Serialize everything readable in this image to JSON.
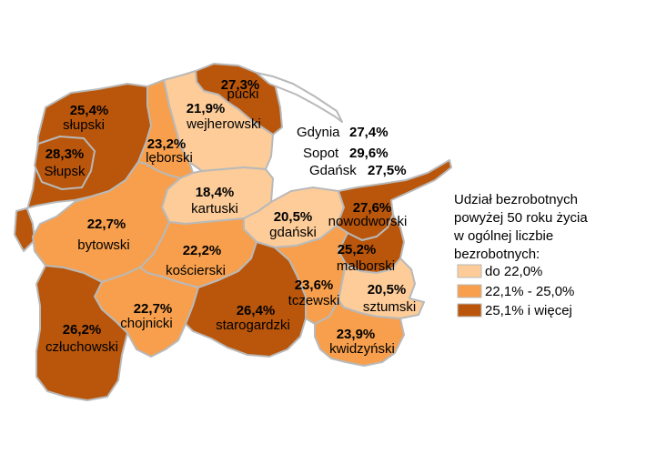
{
  "colors": {
    "low": "#fdcc99",
    "mid": "#f79f4c",
    "high": "#b9560b",
    "border": "#b9b9b9"
  },
  "regions": [
    {
      "name": "pucki",
      "value": "27,3%",
      "class": "high"
    },
    {
      "name": "wejherowski",
      "value": "21,9%",
      "class": "low"
    },
    {
      "name": "słupski",
      "value": "25,4%",
      "class": "high"
    },
    {
      "name": "Słupsk",
      "value": "28,3%",
      "class": "high"
    },
    {
      "name": "lęborski",
      "value": "23,2%",
      "class": "mid"
    },
    {
      "name": "kartuski",
      "value": "18,4%",
      "class": "low"
    },
    {
      "name": "gdański",
      "value": "20,5%",
      "class": "low"
    },
    {
      "name": "nowodworski",
      "value": "27,6%",
      "class": "high"
    },
    {
      "name": "bytowski",
      "value": "22,7%",
      "class": "mid"
    },
    {
      "name": "kościerski",
      "value": "22,2%",
      "class": "mid"
    },
    {
      "name": "malborski",
      "value": "25,2%",
      "class": "high"
    },
    {
      "name": "chojnicki",
      "value": "22,7%",
      "class": "mid"
    },
    {
      "name": "starogardzki",
      "value": "26,4%",
      "class": "high"
    },
    {
      "name": "tczewski",
      "value": "23,6%",
      "class": "mid"
    },
    {
      "name": "sztumski",
      "value": "20,5%",
      "class": "low"
    },
    {
      "name": "człuchowski",
      "value": "26,2%",
      "class": "high"
    },
    {
      "name": "kwidzyński",
      "value": "23,9%",
      "class": "mid"
    }
  ],
  "cities": [
    {
      "name": "Gdynia",
      "value": "27,4%"
    },
    {
      "name": "Sopot",
      "value": "29,6%"
    },
    {
      "name": "Gdańsk",
      "value": "27,5%"
    }
  ],
  "legend": {
    "title_lines": [
      "Udział bezrobotnych",
      "powyżej 50 roku życia",
      "w ogólnej liczbie",
      "bezrobotnych:"
    ],
    "items": [
      {
        "label": "do 22,0%",
        "class": "low"
      },
      {
        "label": "22,1% - 25,0%",
        "class": "mid"
      },
      {
        "label": "25,1% i więcej",
        "class": "high"
      }
    ]
  }
}
